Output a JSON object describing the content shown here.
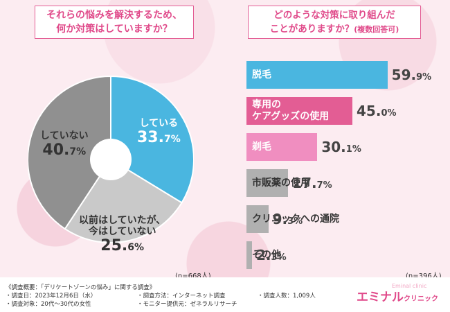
{
  "left_question": {
    "line1": "それらの悩みを解決するため、",
    "line2": "何か対策はしていますか？"
  },
  "right_question": {
    "line1": "どのような対策に取り組んだ",
    "line2": "ことがありますか？",
    "line2_small": "(複数回答可)"
  },
  "pie_n": "(n=668人)",
  "bar_n": "(n=396人)",
  "chart_data": [
    {
      "type": "pie",
      "title": "それらの悩みを解決するため、何か対策はしていますか？",
      "categories": [
        "している",
        "以前はしていたが、今はしていない",
        "していない"
      ],
      "values": [
        33.7,
        25.6,
        40.7
      ],
      "labels": [
        {
          "text": "している",
          "int": "33.",
          "dec": "7",
          "unit": "%"
        },
        {
          "text1": "以前はしていたが、",
          "text2": "今はしていない",
          "int": "25.",
          "dec": "6",
          "unit": "%"
        },
        {
          "text": "していない",
          "int": "40.",
          "dec": "7",
          "unit": "%"
        }
      ],
      "colors": [
        "#4ab6e0",
        "#c9c9c9",
        "#909090"
      ]
    },
    {
      "type": "bar",
      "title": "どのような対策に取り組んだことがありますか？(複数回答可)",
      "categories": [
        "脱毛",
        "専用のケアグッズの使用",
        "剃毛",
        "市販薬の使用",
        "クリニックへの通院",
        "その他"
      ],
      "values": [
        59.9,
        45.0,
        30.1,
        17.7,
        9.3,
        2.3
      ],
      "label_lines": [
        [
          "脱毛"
        ],
        [
          "専用の",
          "ケアグッズの使用"
        ],
        [
          "剃毛"
        ],
        [
          "市販薬の使用"
        ],
        [
          "クリニックへの通院"
        ],
        [
          "その他"
        ]
      ],
      "value_parts": [
        {
          "int": "59.",
          "dec": "9",
          "unit": "%"
        },
        {
          "int": "45.",
          "dec": "0",
          "unit": "%"
        },
        {
          "int": "30.",
          "dec": "1",
          "unit": "%"
        },
        {
          "int": "17.",
          "dec": "7",
          "unit": "%"
        },
        {
          "int": "9.",
          "dec": "3",
          "unit": "%"
        },
        {
          "int": "2.",
          "dec": "3",
          "unit": "%"
        }
      ],
      "colors": [
        "#4ab6e0",
        "#e35d94",
        "#f08ec0",
        "#b0b0b0",
        "#b0b0b0",
        "#b0b0b0"
      ],
      "xlim": [
        0,
        100
      ]
    }
  ],
  "footer": {
    "overview": "《調査概要：「デリケートゾーンの悩み」に関する調査》",
    "date": "・調査日：2023年12月6日（水）",
    "method": "・調査方法：インターネット調査",
    "count": "・調査人数：1,009人",
    "target": "・調査対象：20代〜30代の女性",
    "provider": "・モニター提供元：ゼネラルリサーチ"
  },
  "logo": {
    "main": "エミナル",
    "sub": "クリニック",
    "tiny": "Eminal clinic"
  }
}
